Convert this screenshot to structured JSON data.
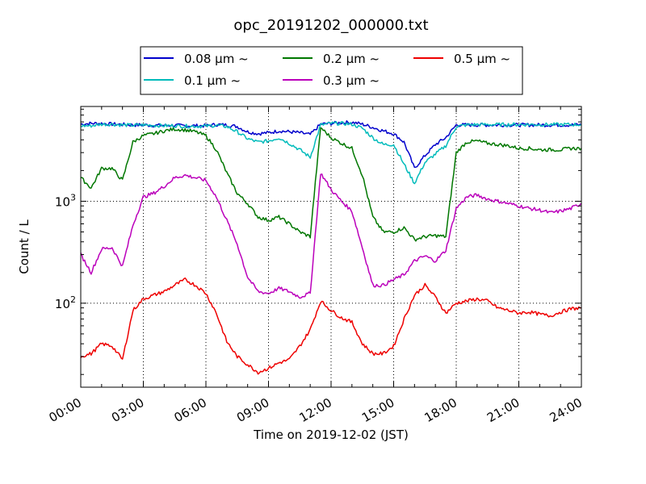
{
  "chart_data": {
    "type": "line",
    "title": "opc_20191202_000000.txt",
    "xlabel": "Time on 2019-12-02 (JST)",
    "ylabel": "Count / L",
    "yscale": "log",
    "xlim": [
      "2019-12-02 00:00",
      "2019-12-03 00:00"
    ],
    "ylim": [
      15,
      8500
    ],
    "x_ticks": [
      "00:00",
      "03:00",
      "06:00",
      "09:00",
      "12:00",
      "15:00",
      "18:00",
      "21:00",
      "24:00"
    ],
    "y_ticks": [
      {
        "value": 100,
        "base": "10",
        "exp": "2"
      },
      {
        "value": 1000,
        "base": "10",
        "exp": "3"
      }
    ],
    "grid": true,
    "legend_position": "top-center",
    "x": [
      "00:00",
      "00:30",
      "01:00",
      "01:30",
      "02:00",
      "02:30",
      "03:00",
      "03:30",
      "04:00",
      "04:30",
      "05:00",
      "05:30",
      "06:00",
      "06:30",
      "07:00",
      "07:30",
      "08:00",
      "08:30",
      "09:00",
      "09:30",
      "10:00",
      "10:30",
      "11:00",
      "11:30",
      "12:00",
      "12:30",
      "13:00",
      "13:30",
      "14:00",
      "14:30",
      "15:00",
      "15:30",
      "16:00",
      "16:30",
      "17:00",
      "17:30",
      "18:00",
      "18:30",
      "19:00",
      "19:30",
      "20:00",
      "20:30",
      "21:00",
      "21:30",
      "22:00",
      "22:30",
      "23:00",
      "23:30",
      "24:00"
    ],
    "series": [
      {
        "name": "0.08 μm ~",
        "color": "#0000cc",
        "values": [
          5700,
          5800,
          5800,
          5700,
          5650,
          5600,
          5600,
          5550,
          5550,
          5550,
          5500,
          5500,
          5500,
          5650,
          5600,
          5400,
          4800,
          4600,
          4700,
          4900,
          4800,
          4700,
          4500,
          5700,
          5800,
          5900,
          5950,
          5700,
          5300,
          4900,
          4600,
          3800,
          2100,
          2800,
          3600,
          4200,
          5600,
          5600,
          5600,
          5600,
          5600,
          5600,
          5600,
          5600,
          5600,
          5600,
          5600,
          5600,
          5600
        ]
      },
      {
        "name": "0.1 μm ~",
        "color": "#00bbbb",
        "values": [
          5500,
          5500,
          5700,
          5700,
          5600,
          5550,
          5600,
          5550,
          5500,
          5500,
          5450,
          5450,
          5450,
          5550,
          5400,
          4800,
          4100,
          3800,
          3900,
          4200,
          3700,
          3200,
          2700,
          5600,
          5800,
          5800,
          5700,
          5200,
          4200,
          3600,
          3600,
          2300,
          1500,
          2400,
          2900,
          3500,
          5400,
          5600,
          5650,
          5650,
          5650,
          5650,
          5650,
          5650,
          5650,
          5650,
          5650,
          5650,
          5650
        ]
      },
      {
        "name": "0.2 μm ~",
        "color": "#007700",
        "values": [
          1700,
          1350,
          2100,
          2100,
          1600,
          3800,
          4400,
          4600,
          4900,
          5100,
          5000,
          4800,
          4400,
          3200,
          1900,
          1200,
          950,
          700,
          650,
          700,
          600,
          500,
          450,
          5300,
          4200,
          3700,
          3300,
          1800,
          700,
          500,
          500,
          550,
          420,
          450,
          460,
          450,
          3000,
          3800,
          3900,
          3700,
          3600,
          3500,
          3300,
          3300,
          3200,
          3200,
          3200,
          3300,
          3300
        ]
      },
      {
        "name": "0.3 μm ~",
        "color": "#bb00bb",
        "values": [
          300,
          200,
          340,
          350,
          230,
          580,
          1100,
          1200,
          1400,
          1700,
          1800,
          1700,
          1600,
          1100,
          650,
          380,
          180,
          130,
          125,
          140,
          130,
          115,
          125,
          1900,
          1300,
          1000,
          800,
          350,
          150,
          150,
          170,
          190,
          260,
          290,
          260,
          330,
          850,
          1100,
          1150,
          1050,
          1000,
          950,
          900,
          850,
          820,
          770,
          800,
          850,
          950
        ]
      },
      {
        "name": "0.5 μm ~",
        "color": "#ee0000",
        "values": [
          30,
          32,
          40,
          38,
          28,
          85,
          110,
          120,
          130,
          150,
          170,
          150,
          125,
          80,
          42,
          30,
          25,
          21,
          23,
          26,
          28,
          38,
          55,
          105,
          85,
          72,
          65,
          40,
          32,
          32,
          38,
          70,
          120,
          150,
          115,
          80,
          100,
          105,
          110,
          105,
          90,
          85,
          80,
          82,
          78,
          75,
          82,
          88,
          90
        ]
      }
    ]
  }
}
